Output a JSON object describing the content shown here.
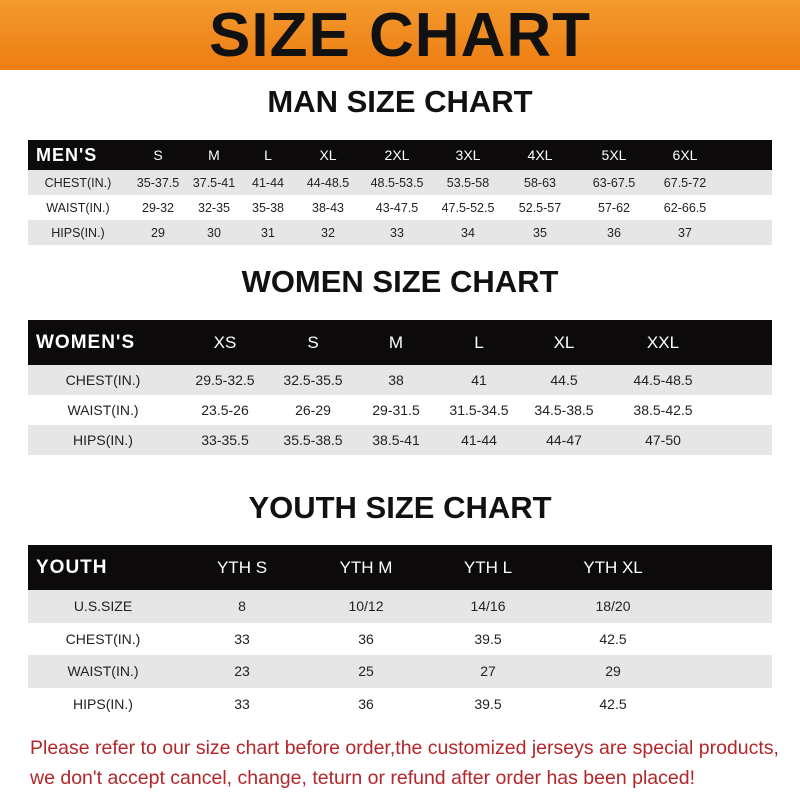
{
  "header": {
    "title": "SIZE CHART",
    "accent_color": "#ef8a20"
  },
  "men": {
    "title": "MAN SIZE CHART",
    "label": "MEN'S",
    "sizes": [
      "S",
      "M",
      "L",
      "XL",
      "2XL",
      "3XL",
      "4XL",
      "5XL",
      "6XL"
    ],
    "rows": [
      {
        "label": "CHEST(IN.)",
        "values": [
          "35-37.5",
          "37.5-41",
          "41-44",
          "44-48.5",
          "48.5-53.5",
          "53.5-58",
          "58-63",
          "63-67.5",
          "67.5-72"
        ]
      },
      {
        "label": "WAIST(IN.)",
        "values": [
          "29-32",
          "32-35",
          "35-38",
          "38-43",
          "43-47.5",
          "47.5-52.5",
          "52.5-57",
          "57-62",
          "62-66.5"
        ]
      },
      {
        "label": "HIPS(IN.)",
        "values": [
          "29",
          "30",
          "31",
          "32",
          "33",
          "34",
          "35",
          "36",
          "37"
        ]
      }
    ]
  },
  "women": {
    "title": "WOMEN SIZE CHART",
    "label": "WOMEN'S",
    "sizes": [
      "XS",
      "S",
      "M",
      "L",
      "XL",
      "XXL"
    ],
    "rows": [
      {
        "label": "CHEST(IN.)",
        "values": [
          "29.5-32.5",
          "32.5-35.5",
          "38",
          "41",
          "44.5",
          "44.5-48.5"
        ]
      },
      {
        "label": "WAIST(IN.)",
        "values": [
          "23.5-26",
          "26-29",
          "29-31.5",
          "31.5-34.5",
          "34.5-38.5",
          "38.5-42.5"
        ]
      },
      {
        "label": "HIPS(IN.)",
        "values": [
          "33-35.5",
          "35.5-38.5",
          "38.5-41",
          "41-44",
          "44-47",
          "47-50"
        ]
      }
    ]
  },
  "youth": {
    "title": "YOUTH SIZE CHART",
    "label": "YOUTH",
    "sizes": [
      "YTH S",
      "YTH M",
      "YTH L",
      "YTH XL"
    ],
    "rows": [
      {
        "label": "U.S.SIZE",
        "values": [
          "8",
          "10/12",
          "14/16",
          "18/20"
        ]
      },
      {
        "label": "CHEST(IN.)",
        "values": [
          "33",
          "36",
          "39.5",
          "42.5"
        ]
      },
      {
        "label": "WAIST(IN.)",
        "values": [
          "23",
          "25",
          "27",
          "29"
        ]
      },
      {
        "label": "HIPS(IN.)",
        "values": [
          "33",
          "36",
          "39.5",
          "42.5"
        ]
      }
    ]
  },
  "notice": {
    "line1": "Please refer to our size chart before order,the customized jerseys are special products,",
    "line2": "we don't accept cancel, change, teturn or refund after order has been placed!",
    "color": "#b3262a"
  }
}
